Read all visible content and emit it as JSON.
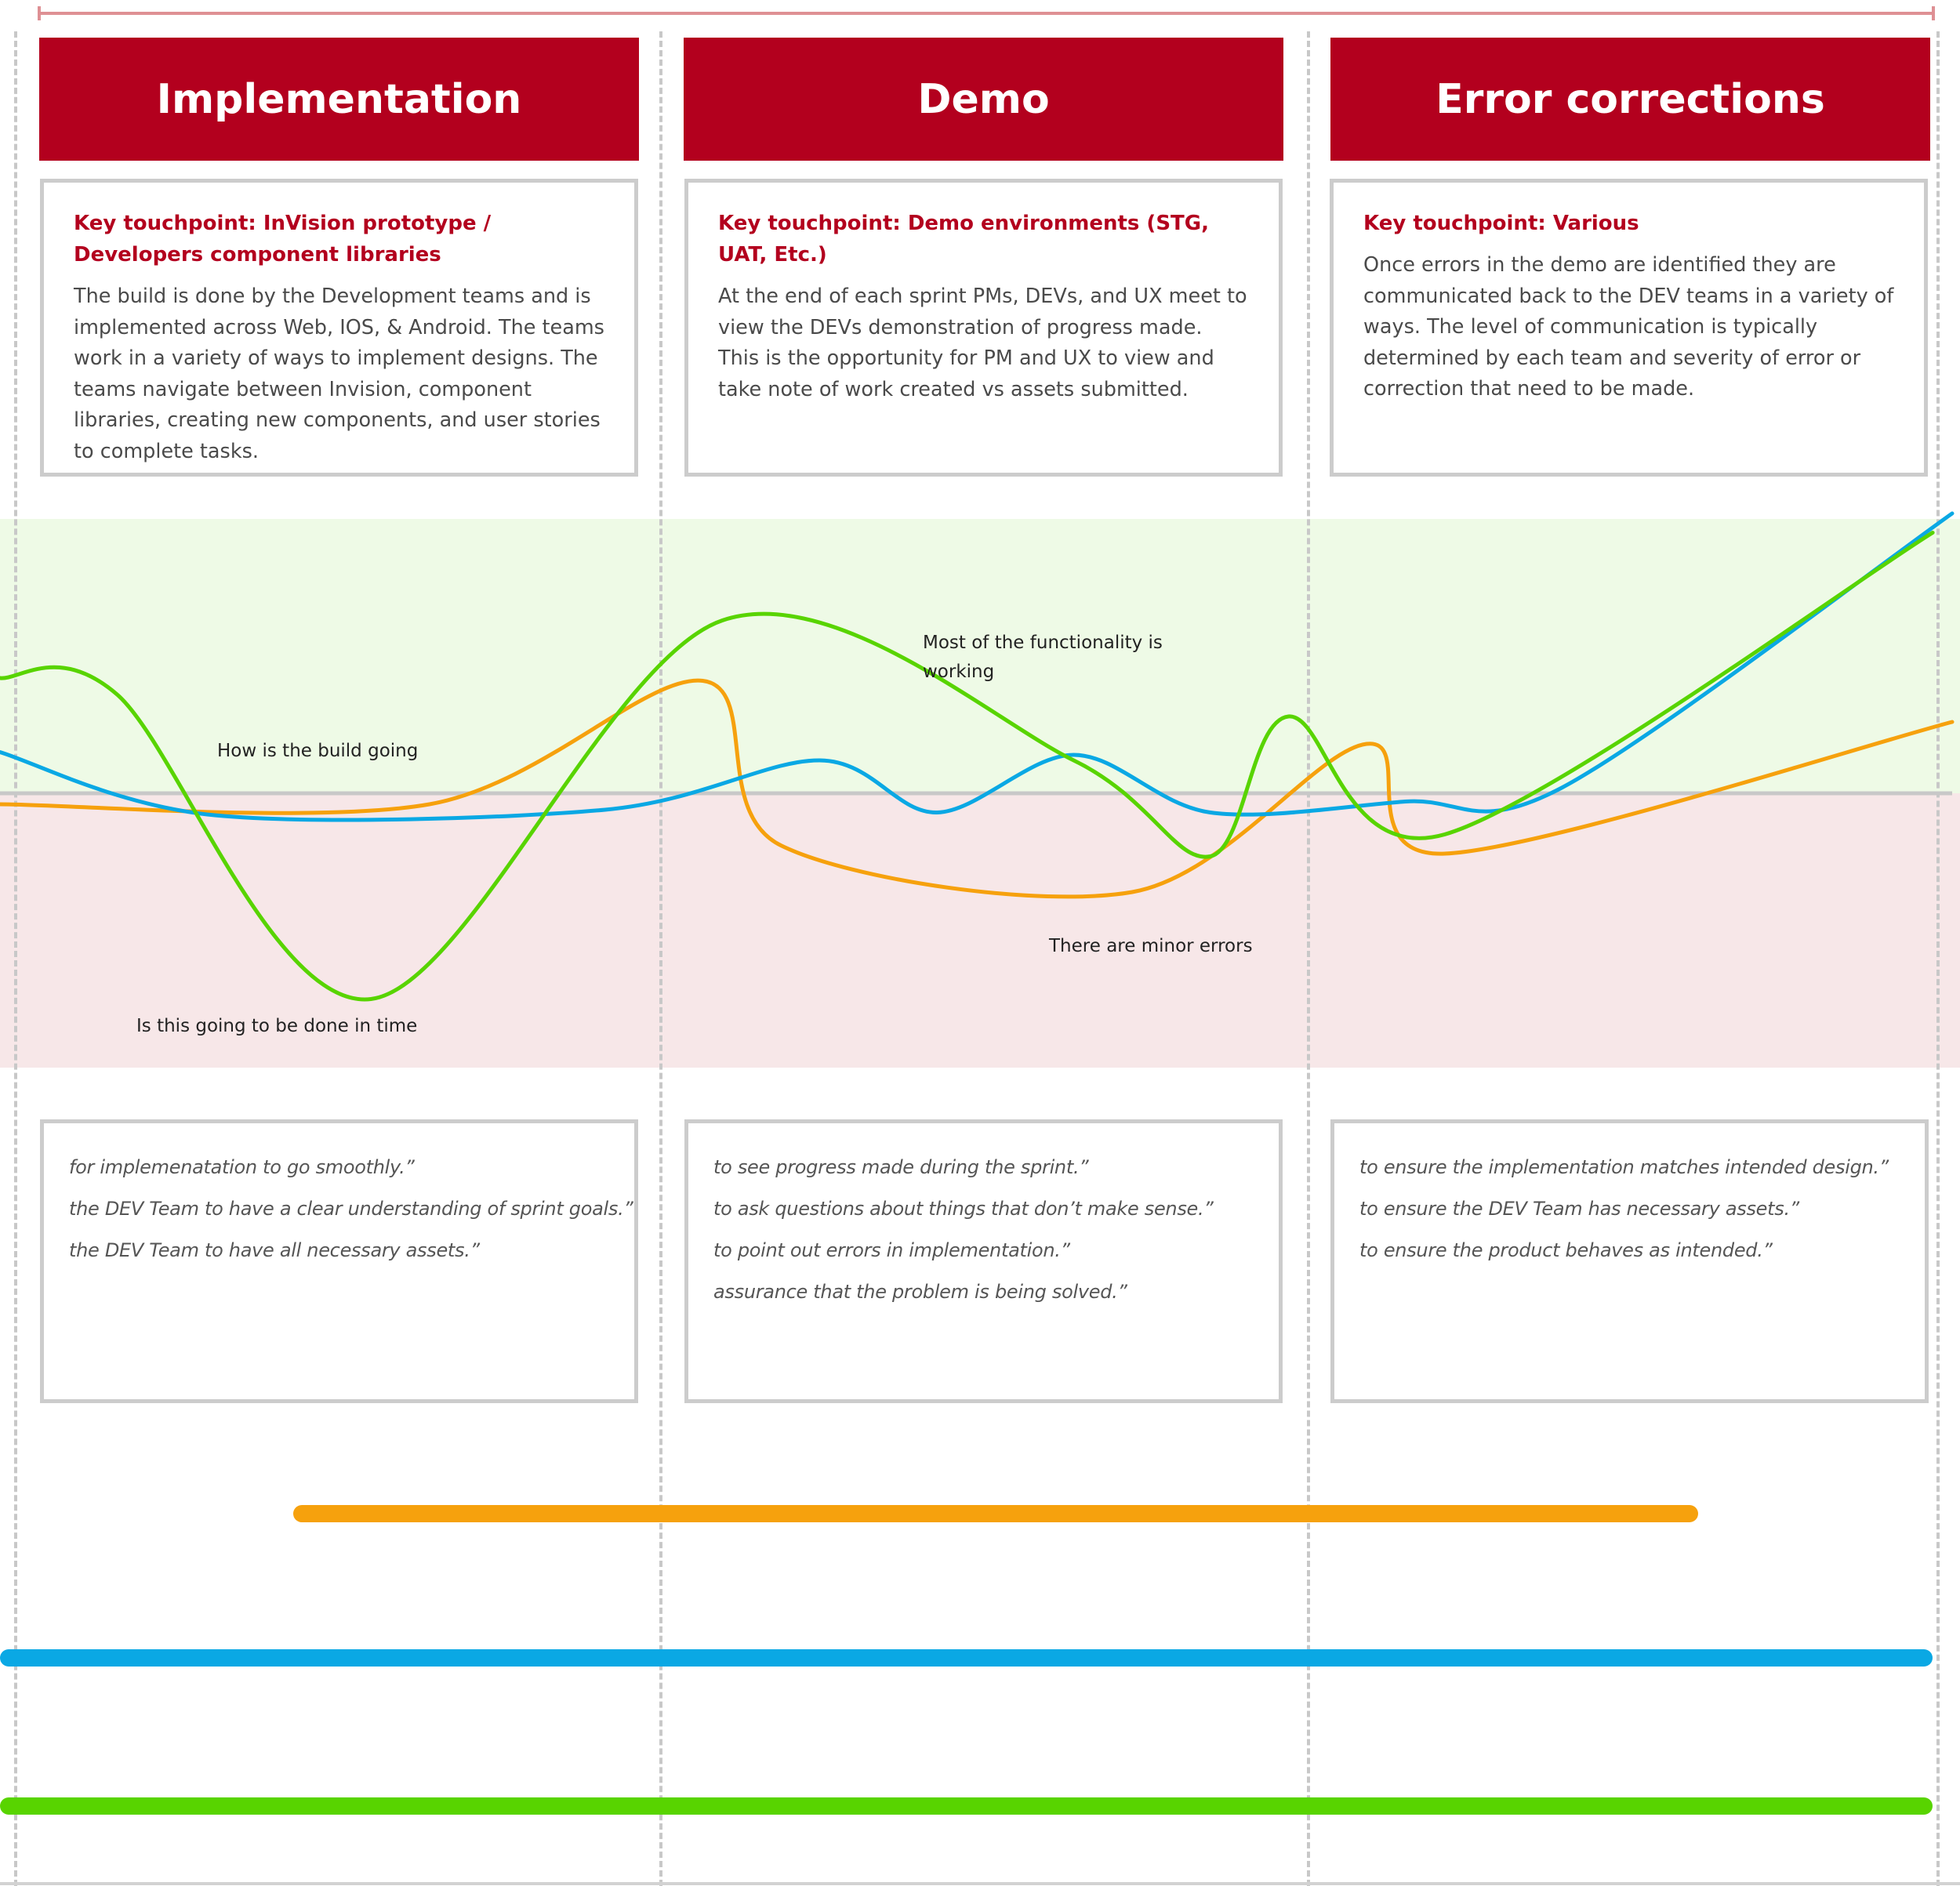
{
  "phases": [
    {
      "title": "Implementation",
      "touchpoint": "Key touchpoint: InVision prototype / Developers component libraries",
      "description": "The build is done by the Development teams and is implemented across Web, IOS, & Android. The teams work in a variety of ways to implement designs. The teams navigate between Invision, component libraries, creating new components, and user stories to complete tasks.",
      "quotes": [
        "for implemenatation to go smoothly.”",
        "the DEV Team to have a clear understanding of sprint goals.”",
        "the DEV Team to have all necessary assets.”"
      ]
    },
    {
      "title": "Demo",
      "touchpoint": "Key touchpoint: Demo environments (STG, UAT, Etc.)",
      "description": "At the end of each sprint PMs, DEVs, and UX meet to view the DEVs demonstration of progress made. This is the opportunity for PM and UX to view and take note of work created vs assets submitted.",
      "quotes": [
        "to see progress made during the sprint.”",
        "to ask questions about things that don’t make sense.”",
        "to point out errors in implementation.”",
        "assurance that the problem is being solved.”"
      ]
    },
    {
      "title": "Error corrections",
      "touchpoint": "Key touchpoint: Various",
      "description": "Once errors in the demo are identified they are communicated back to the DEV teams in a variety of ways. The level of communication is typically determined by each team and severity of error or correction that need to be made.",
      "quotes": [
        "to ensure the implementation matches intended design.”",
        "to ensure the DEV Team has necessary assets.”",
        "to ensure the product behaves as intended.”"
      ]
    }
  ],
  "annotations": {
    "build_going": "How is the build going",
    "done_in_time": "Is this going to be done in time",
    "functionality_line1": "Most of the functionality is",
    "functionality_line2": "working",
    "minor_errors": "There are minor errors"
  },
  "colors": {
    "header_red": "#b3001e",
    "orange": "#f6a10d",
    "blue": "#0aa8e4",
    "green": "#58d400",
    "positive_band": "#eefae6",
    "negative_band": "#f7e7e8",
    "neutral_line": "#c8c8c8"
  },
  "chart_data": {
    "type": "line",
    "x_domain": [
      0,
      100
    ],
    "y_domain": [
      -100,
      100
    ],
    "baseline": 0,
    "series": [
      {
        "color": "orange",
        "points": [
          [
            0,
            -4
          ],
          [
            22,
            -4
          ],
          [
            36,
            41
          ],
          [
            40,
            -19
          ],
          [
            58,
            -36
          ],
          [
            70,
            18
          ],
          [
            74,
            -22
          ],
          [
            100,
            26
          ]
        ]
      },
      {
        "color": "blue",
        "points": [
          [
            0,
            15
          ],
          [
            11,
            -8
          ],
          [
            31,
            -6
          ],
          [
            42,
            12
          ],
          [
            48,
            -7
          ],
          [
            55,
            14
          ],
          [
            62,
            -7
          ],
          [
            72,
            -3
          ],
          [
            80,
            2
          ],
          [
            100,
            102
          ]
        ]
      },
      {
        "color": "green",
        "points": [
          [
            0,
            42
          ],
          [
            6,
            36
          ],
          [
            19,
            -75
          ],
          [
            37,
            63
          ],
          [
            55,
            12
          ],
          [
            62,
            -23
          ],
          [
            66,
            28
          ],
          [
            74,
            -15
          ],
          [
            99,
            95
          ]
        ]
      }
    ],
    "swimlanes": [
      {
        "color": "orange",
        "start": 15,
        "end": 87
      },
      {
        "color": "blue",
        "start": 0,
        "end": 99
      },
      {
        "color": "green",
        "start": 0,
        "end": 99
      }
    ]
  }
}
